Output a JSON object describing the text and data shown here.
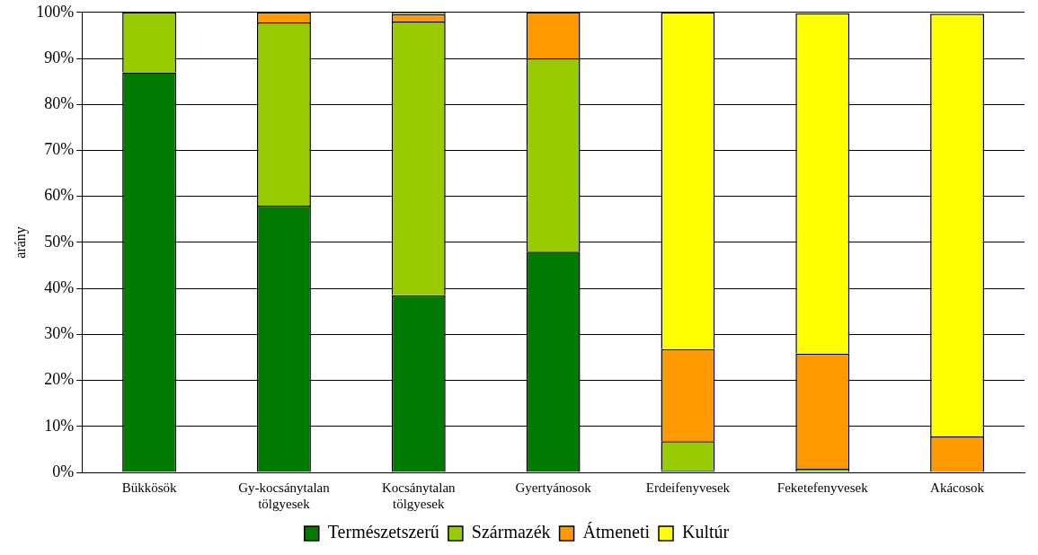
{
  "chart_data": {
    "type": "bar",
    "stacked": true,
    "ylabel": "arány",
    "categories": [
      "Bükkösök",
      "Gy-kocsánytalan tölgyesek",
      "Kocsánytalan tölgyesek",
      "Gyertyánosok",
      "Erdeifenyvesek",
      "Feketefenyvesek",
      "Akácosok"
    ],
    "series": [
      {
        "name": "Természetszerű",
        "color": "#007a00",
        "values": [
          87,
          58,
          38.5,
          48,
          0.5,
          null,
          null
        ]
      },
      {
        "name": "Származék",
        "color": "#99cc00",
        "values": [
          13,
          39.8,
          59.5,
          42,
          6.3,
          0.8,
          0
        ]
      },
      {
        "name": "Átmeneti",
        "color": "#ff9900",
        "values": [
          0,
          2.2,
          1.6,
          10,
          20,
          25,
          7.8
        ]
      },
      {
        "name": "Kultúr",
        "color": "#ffff00",
        "values": [
          0,
          0,
          0.4,
          0,
          73.2,
          74,
          91.9
        ]
      }
    ],
    "ylim": [
      0,
      100
    ],
    "yticks": [
      {
        "value": 0,
        "label": "0%"
      },
      {
        "value": 10,
        "label": "10%"
      },
      {
        "value": 20,
        "label": "20%"
      },
      {
        "value": 30,
        "label": "30%"
      },
      {
        "value": 40,
        "label": "40%"
      },
      {
        "value": 50,
        "label": "50%"
      },
      {
        "value": 60,
        "label": "60%"
      },
      {
        "value": 70,
        "label": "70%"
      },
      {
        "value": 80,
        "label": "80%"
      },
      {
        "value": 90,
        "label": "90%"
      },
      {
        "value": 100,
        "label": "100%"
      }
    ],
    "grid": "y",
    "legend": "bottom"
  }
}
